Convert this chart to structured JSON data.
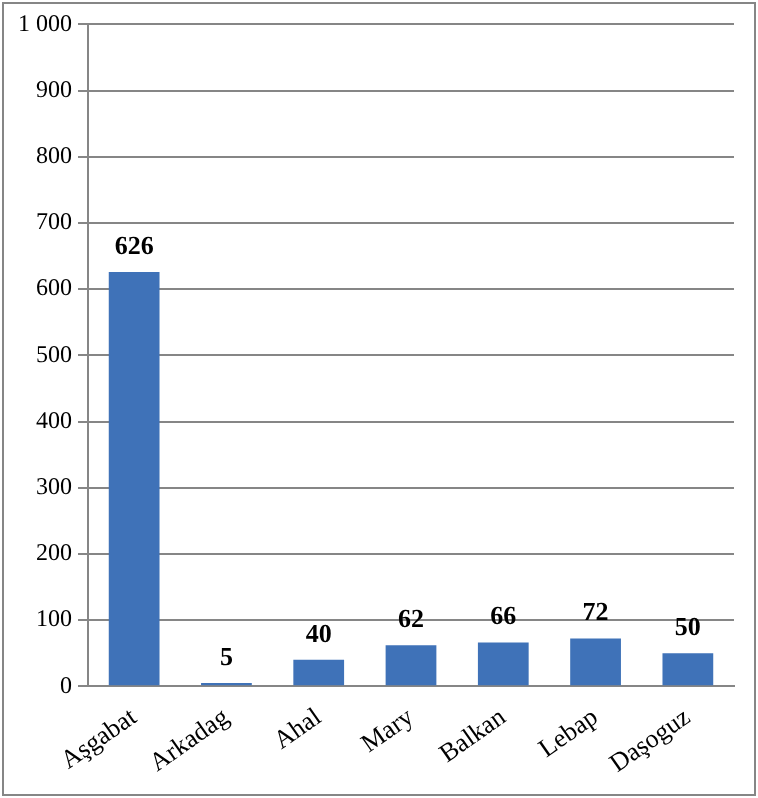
{
  "chart_data": {
    "type": "bar",
    "categories": [
      "Aşgabat",
      "Arkadag",
      "Ahal",
      "Mary",
      "Balkan",
      "Lebap",
      "Daşoguz"
    ],
    "values": [
      626,
      5,
      40,
      62,
      66,
      72,
      50
    ],
    "color": "#3f72b8",
    "data_labels": true,
    "grid": "y",
    "legend": false,
    "ylim": [
      0,
      1000
    ],
    "yticks": [
      0,
      100,
      200,
      300,
      400,
      500,
      600,
      700,
      800,
      900,
      {
        "value": 1000,
        "label": "1 000"
      }
    ]
  }
}
